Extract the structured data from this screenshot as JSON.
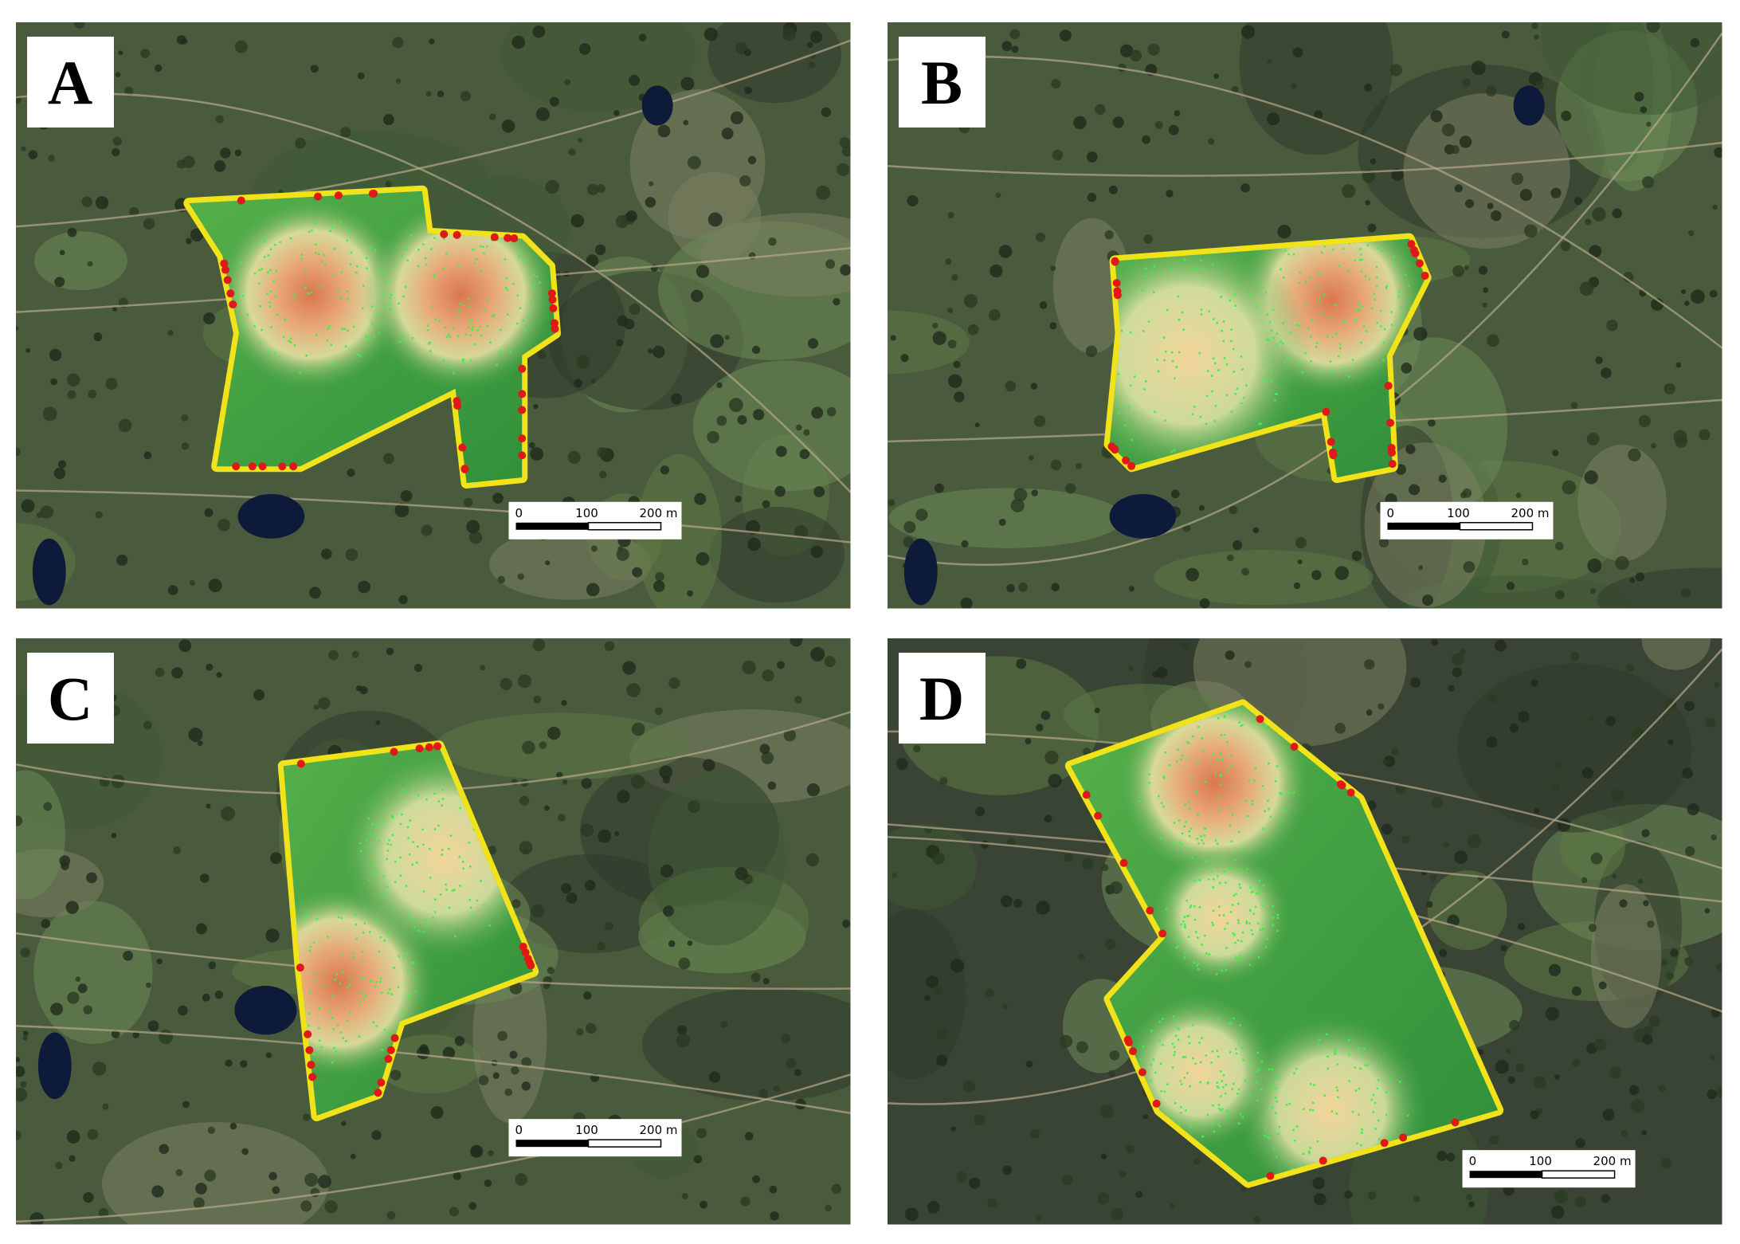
{
  "panels": [
    {
      "label": "A",
      "scale_bar": [
        "0",
        "100",
        "200 m"
      ]
    },
    {
      "label": "B",
      "scale_bar": [
        "0",
        "100",
        "200 m"
      ]
    },
    {
      "label": "C",
      "scale_bar": [
        "0",
        "100",
        "200 m"
      ]
    },
    {
      "label": "D",
      "scale_bar": [
        "0",
        "100",
        "200 m"
      ]
    }
  ]
}
